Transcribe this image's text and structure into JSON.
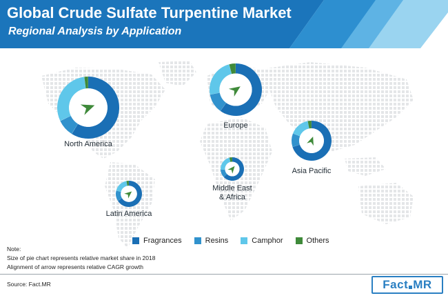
{
  "header": {
    "title": "Global Crude Sulfate Turpentine Market",
    "subtitle": "Regional Analysis by Application"
  },
  "chart_data": {
    "type": "pie",
    "style": "donut",
    "series_names": [
      "Fragrances",
      "Resins",
      "Camphor",
      "Others"
    ],
    "colors": [
      "#1a6fb5",
      "#3192cd",
      "#5fc7ea",
      "#3f8a3a"
    ],
    "regions": [
      {
        "name": "North America",
        "values": [
          59,
          9,
          30,
          2
        ],
        "cagr_arrow_deg": 20,
        "size_rank": 1
      },
      {
        "name": "Europe",
        "values": [
          60,
          12,
          24,
          4
        ],
        "cagr_arrow_deg": 35,
        "size_rank": 2
      },
      {
        "name": "Asia Pacific",
        "values": [
          70,
          11,
          16,
          3
        ],
        "cagr_arrow_deg": 70,
        "size_rank": 3
      },
      {
        "name": "Middle East & Africa",
        "values": [
          63,
          11,
          22,
          4
        ],
        "cagr_arrow_deg": 50,
        "size_rank": 4
      },
      {
        "name": "Latin America",
        "values": [
          66,
          13,
          18,
          3
        ],
        "cagr_arrow_deg": 40,
        "size_rank": 5
      }
    ]
  },
  "legend": {
    "items": [
      {
        "label": "Fragrances",
        "color": "#1a6fb5"
      },
      {
        "label": "Resins",
        "color": "#3192cd"
      },
      {
        "label": "Camphor",
        "color": "#5fc7ea"
      },
      {
        "label": "Others",
        "color": "#3f8a3a"
      }
    ]
  },
  "note": {
    "heading": "Note:",
    "line1": "Size of pie chart represents relative market share in 2018",
    "line2": "Alignment of arrow represents relative CAGR growth"
  },
  "footer": {
    "source": "Source: Fact.MR",
    "logo_left": "Fact",
    "logo_right": "MR"
  }
}
